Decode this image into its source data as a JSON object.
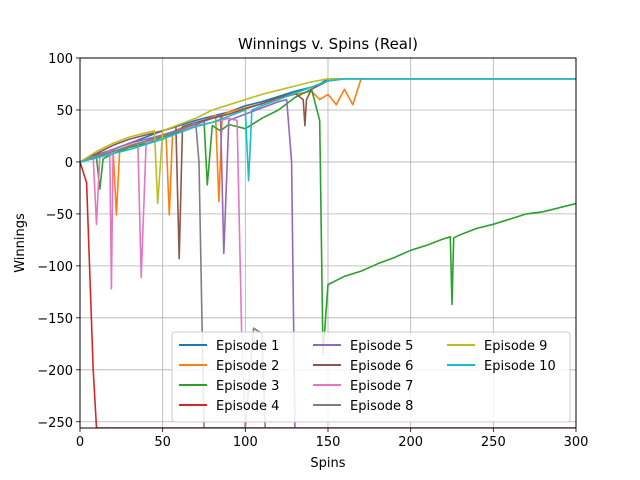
{
  "chart_data": {
    "type": "line",
    "title": "Winnings v. Spins (Real)",
    "xlabel": "Spins",
    "ylabel": "Winnings",
    "xlim": [
      0,
      300
    ],
    "ylim": [
      -256,
      100
    ],
    "xticks": [
      0,
      50,
      100,
      150,
      200,
      250,
      300
    ],
    "yticks": [
      100,
      50,
      0,
      -50,
      -100,
      -150,
      -200,
      -250
    ],
    "grid": true,
    "legend_location": "lower-right",
    "legend_columns": 3,
    "series": [
      {
        "name": "Episode 1",
        "color": "#1f77b4",
        "x": [
          0,
          10,
          20,
          30,
          40,
          50,
          60,
          70,
          80,
          90,
          100,
          110,
          120,
          130,
          140,
          145,
          150,
          160,
          170,
          300
        ],
        "y": [
          0,
          6,
          12,
          18,
          24,
          30,
          35,
          40,
          44,
          48,
          54,
          58,
          63,
          68,
          72,
          75,
          80,
          80,
          80,
          80
        ]
      },
      {
        "name": "Episode 2",
        "color": "#ff7f0e",
        "x": [
          0,
          10,
          18,
          20,
          22,
          24,
          30,
          40,
          50,
          52,
          54,
          56,
          60,
          70,
          80,
          82,
          84,
          86,
          90,
          100,
          110,
          120,
          130,
          140,
          145,
          150,
          155,
          160,
          165,
          170,
          300
        ],
        "y": [
          0,
          6,
          11,
          12,
          -51,
          12,
          16,
          20,
          26,
          27,
          -51,
          28,
          32,
          37,
          43,
          45,
          -38,
          45,
          48,
          52,
          56,
          61,
          65,
          68,
          60,
          65,
          55,
          70,
          55,
          80,
          80
        ]
      },
      {
        "name": "Episode 3",
        "color": "#2ca02c",
        "x": [
          0,
          10,
          12,
          14,
          20,
          30,
          40,
          50,
          60,
          70,
          75,
          77,
          80,
          85,
          90,
          100,
          110,
          120,
          130,
          140,
          145,
          147,
          150,
          160,
          170,
          180,
          190,
          200,
          210,
          220,
          224,
          225,
          226,
          230,
          240,
          250,
          260,
          270,
          280,
          290,
          300
        ],
        "y": [
          0,
          4,
          -26,
          3,
          8,
          14,
          18,
          24,
          29,
          35,
          40,
          -22,
          35,
          30,
          36,
          32,
          42,
          50,
          62,
          70,
          40,
          -185,
          -118,
          -110,
          -105,
          -98,
          -92,
          -85,
          -80,
          -74,
          -72,
          -137,
          -73,
          -70,
          -64,
          -60,
          -55,
          -50,
          -48,
          -44,
          -40
        ]
      },
      {
        "name": "Episode 4",
        "color": "#d62728",
        "x": [
          0,
          4,
          8,
          10,
          15,
          20,
          40,
          60,
          80,
          100,
          300
        ],
        "y": [
          0,
          -20,
          -200,
          -256,
          -256,
          -256,
          -256,
          -256,
          -256,
          -256,
          -256
        ]
      },
      {
        "name": "Episode 5",
        "color": "#9467bd",
        "x": [
          0,
          10,
          20,
          30,
          40,
          50,
          60,
          70,
          80,
          85,
          87,
          90,
          100,
          110,
          120,
          125,
          128,
          130
        ],
        "y": [
          0,
          7,
          12,
          18,
          22,
          26,
          31,
          36,
          42,
          45,
          -88,
          40,
          46,
          52,
          58,
          60,
          0,
          -256
        ]
      },
      {
        "name": "Episode 6",
        "color": "#8c564b",
        "x": [
          0,
          10,
          20,
          30,
          40,
          50,
          58,
          60,
          62,
          70,
          80,
          90,
          100,
          110,
          120,
          130,
          135,
          136,
          137,
          140,
          150,
          160,
          170,
          300
        ],
        "y": [
          0,
          8,
          16,
          22,
          26,
          30,
          34,
          -93,
          34,
          38,
          42,
          46,
          51,
          56,
          62,
          66,
          60,
          35,
          60,
          70,
          78,
          80,
          80,
          80
        ]
      },
      {
        "name": "Episode 7",
        "color": "#e377c2",
        "x": [
          0,
          8,
          10,
          12,
          18,
          19,
          20,
          30,
          35,
          37,
          40,
          45,
          50,
          60,
          70,
          80,
          90,
          95,
          98,
          100
        ],
        "y": [
          0,
          5,
          -60,
          5,
          10,
          -122,
          10,
          15,
          18,
          -111,
          18,
          22,
          25,
          30,
          35,
          38,
          42,
          40,
          -180,
          -256
        ]
      },
      {
        "name": "Episode 8",
        "color": "#7f7f7f",
        "x": [
          0,
          10,
          20,
          30,
          40,
          50,
          60,
          65,
          70,
          72,
          75,
          80,
          90,
          100,
          105,
          110,
          112
        ],
        "y": [
          0,
          5,
          10,
          15,
          20,
          25,
          30,
          34,
          38,
          0,
          -256,
          -256,
          -256,
          -256,
          -160,
          -165,
          -256
        ]
      },
      {
        "name": "Episode 9",
        "color": "#bcbd22",
        "x": [
          0,
          10,
          20,
          30,
          40,
          45,
          47,
          50,
          60,
          70,
          80,
          90,
          100,
          110,
          120,
          130,
          140,
          150,
          160,
          170,
          300
        ],
        "y": [
          0,
          10,
          18,
          24,
          28,
          30,
          -40,
          30,
          36,
          42,
          50,
          55,
          60,
          65,
          69,
          73,
          77,
          80,
          80,
          80,
          80
        ]
      },
      {
        "name": "Episode 10",
        "color": "#17becf",
        "x": [
          0,
          10,
          20,
          30,
          40,
          50,
          60,
          70,
          80,
          90,
          100,
          102,
          104,
          110,
          120,
          130,
          140,
          150,
          160,
          170,
          300
        ],
        "y": [
          0,
          4,
          8,
          12,
          17,
          22,
          28,
          34,
          38,
          44,
          50,
          -18,
          50,
          54,
          60,
          66,
          72,
          78,
          80,
          80,
          80
        ]
      }
    ]
  }
}
